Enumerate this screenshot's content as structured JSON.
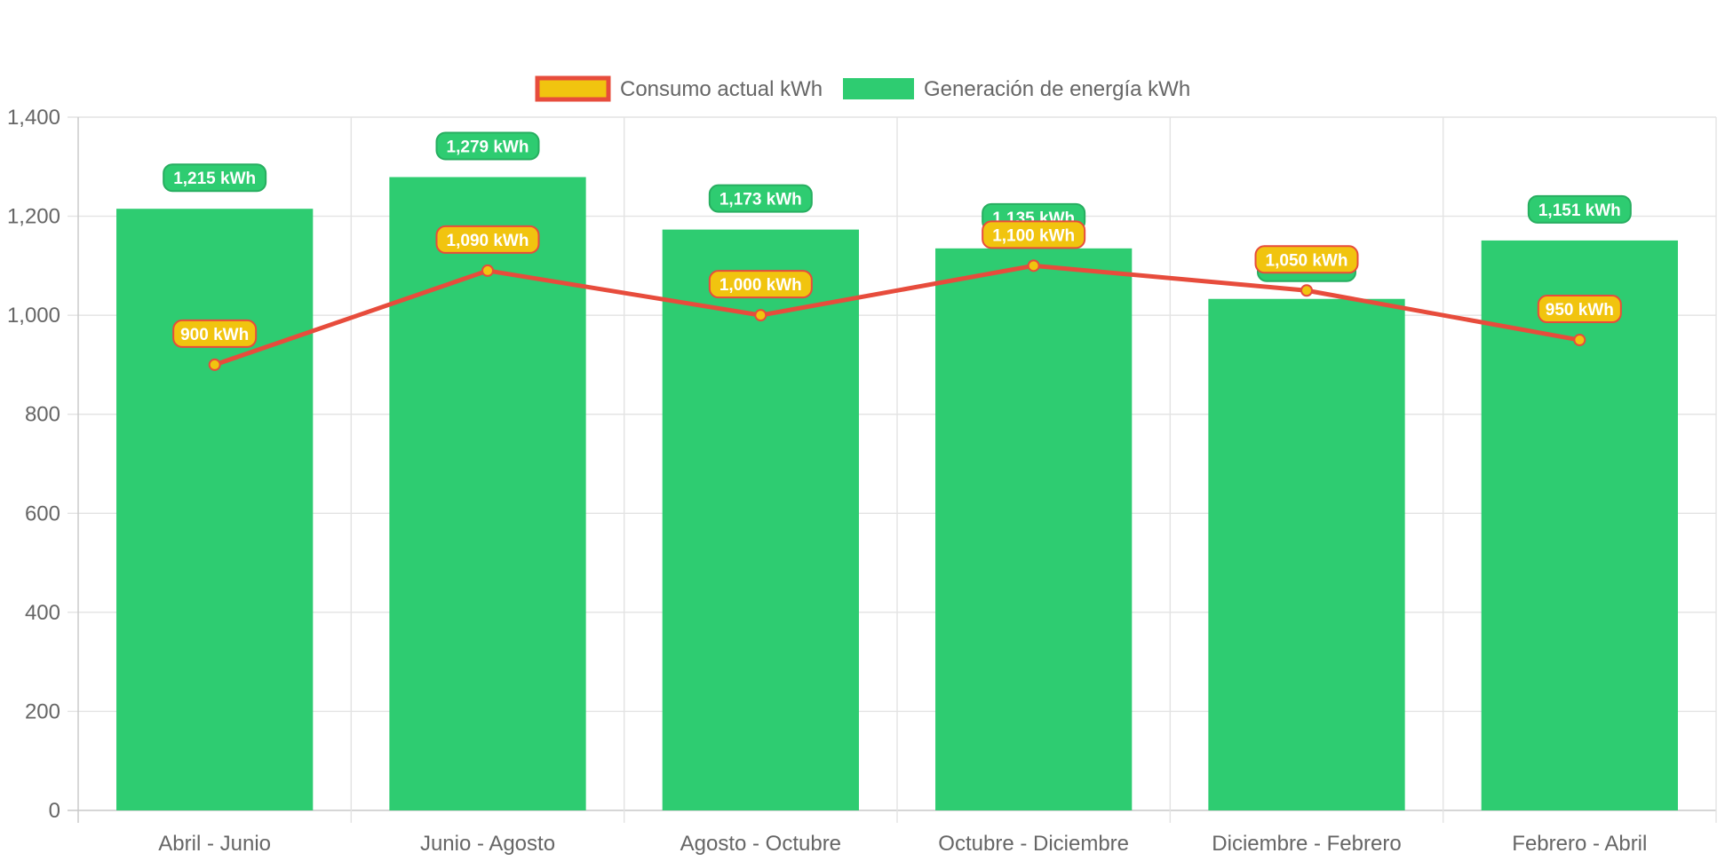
{
  "chart_data": {
    "type": "bar",
    "title": "",
    "xlabel": "",
    "ylabel": "",
    "categories": [
      "Abril - Junio",
      "Junio - Agosto",
      "Agosto - Octubre",
      "Octubre - Diciembre",
      "Diciembre - Febrero",
      "Febrero - Abril"
    ],
    "ylim": [
      0,
      1400
    ],
    "y_ticks": [
      0,
      200,
      400,
      600,
      800,
      1000,
      1200,
      1400
    ],
    "y_tick_labels": [
      "0",
      "200",
      "400",
      "600",
      "800",
      "1,000",
      "1,200",
      "1,400"
    ],
    "grid": true,
    "legend_position": "top-center",
    "series": [
      {
        "name": "Consumo actual kWh",
        "type": "line",
        "values": [
          900,
          1090,
          1000,
          1100,
          1050,
          950
        ],
        "labels": [
          "900 kWh",
          "1,090 kWh",
          "1,000 kWh",
          "1,100 kWh",
          "1,050 kWh",
          "950 kWh"
        ],
        "color": "#e74c3c",
        "fill_color": "#f1c40f"
      },
      {
        "name": "Generación de energía kWh",
        "type": "bar",
        "values": [
          1215,
          1279,
          1173,
          1135,
          1033,
          1151
        ],
        "labels": [
          "1,215 kWh",
          "1,279 kWh",
          "1,173 kWh",
          "1,135 kWh",
          "",
          "1,151 kWh"
        ],
        "color": "#2ecc71"
      }
    ],
    "colors": {
      "grid": "#e3e3e3",
      "axis": "#c8c8c8",
      "text": "#666666",
      "bar_label_border": "#27ae60"
    }
  }
}
